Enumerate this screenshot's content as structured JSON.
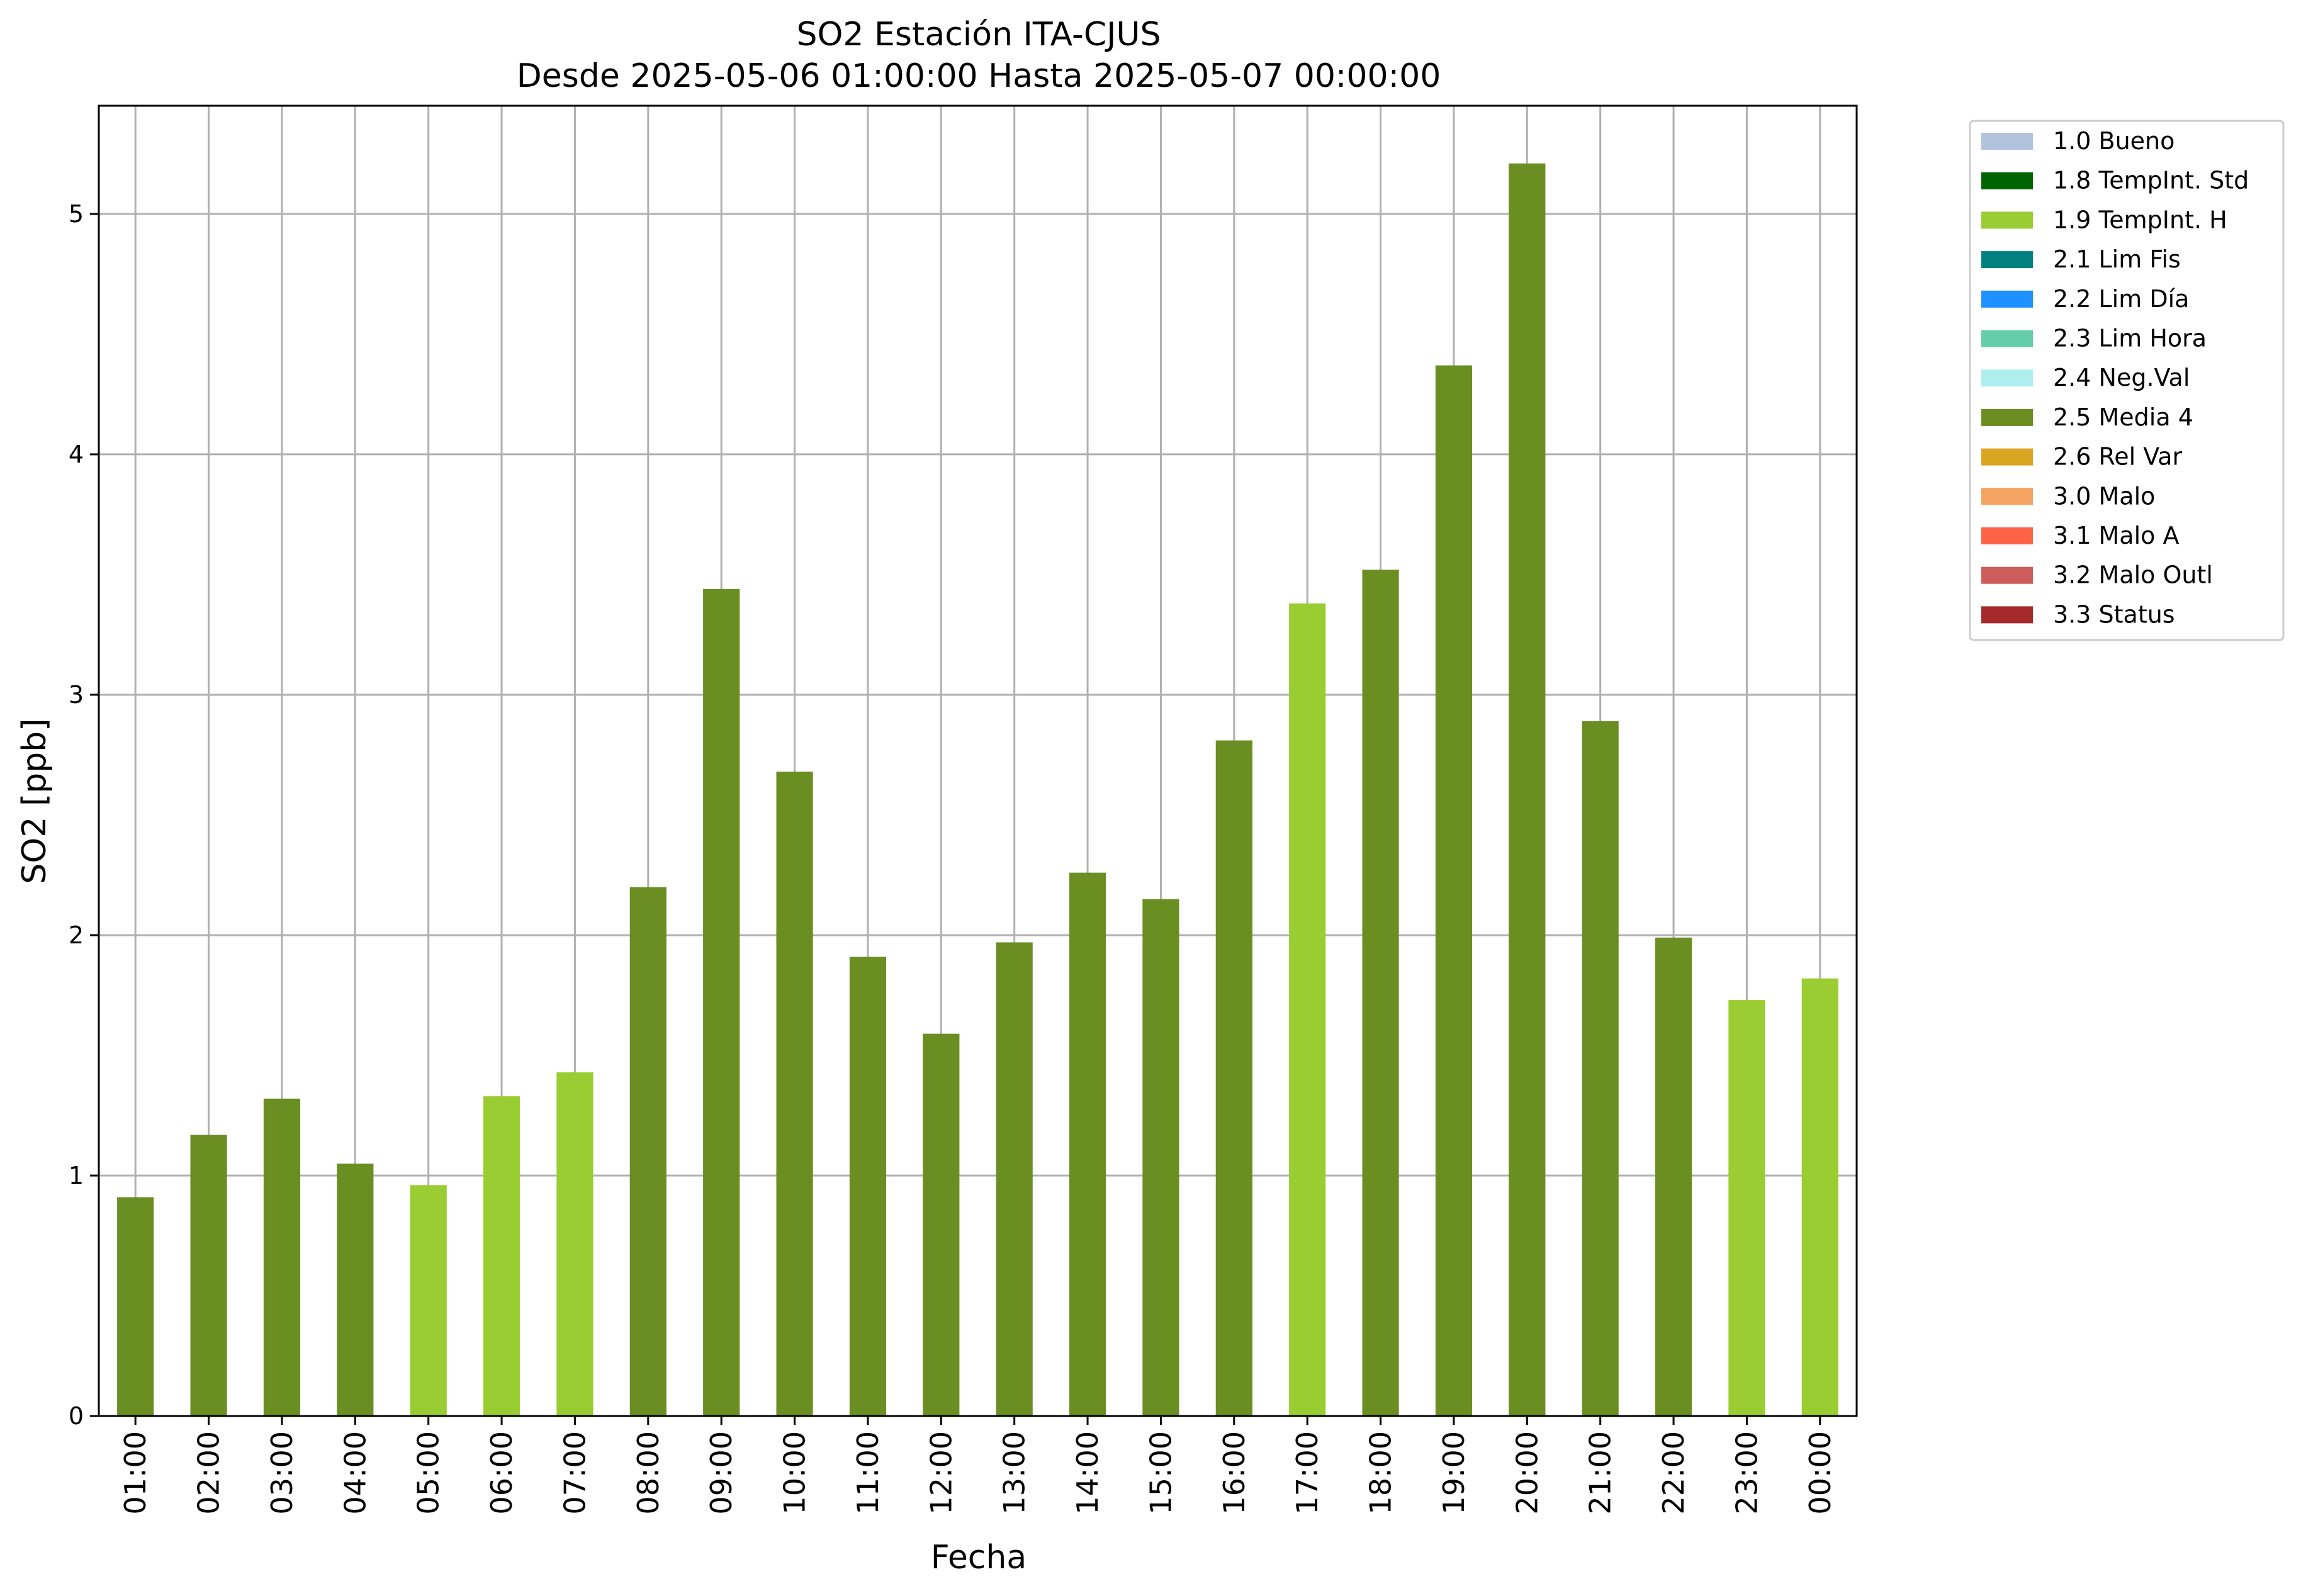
{
  "chart_data": {
    "type": "bar",
    "title": "SO2 Estación ITA-CJUS",
    "subtitle": "Desde 2025-05-06 01:00:00 Hasta 2025-05-07 00:00:00",
    "xlabel": "Fecha",
    "ylabel": "SO2 [ppb]",
    "ylim": [
      0,
      5.45
    ],
    "yticks": [
      "0",
      "1",
      "2",
      "3",
      "4",
      "5"
    ],
    "grid": true,
    "legend_position": "outside-right-top",
    "categories": [
      "01:00",
      "02:00",
      "03:00",
      "04:00",
      "05:00",
      "06:00",
      "07:00",
      "08:00",
      "09:00",
      "10:00",
      "11:00",
      "12:00",
      "13:00",
      "14:00",
      "15:00",
      "16:00",
      "17:00",
      "18:00",
      "19:00",
      "20:00",
      "21:00",
      "22:00",
      "23:00",
      "00:00"
    ],
    "values": [
      0.91,
      1.17,
      1.32,
      1.05,
      0.96,
      1.33,
      1.43,
      2.2,
      3.44,
      2.68,
      1.91,
      1.59,
      1.97,
      2.26,
      2.15,
      2.81,
      3.38,
      3.52,
      4.37,
      5.21,
      2.89,
      1.99,
      1.73,
      1.82
    ],
    "flags": [
      "2.5 Media 4",
      "2.5 Media 4",
      "2.5 Media 4",
      "2.5 Media 4",
      "1.9 TempInt. H",
      "1.9 TempInt. H",
      "1.9 TempInt. H",
      "2.5 Media 4",
      "2.5 Media 4",
      "2.5 Media 4",
      "2.5 Media 4",
      "2.5 Media 4",
      "2.5 Media 4",
      "2.5 Media 4",
      "2.5 Media 4",
      "2.5 Media 4",
      "1.9 TempInt. H",
      "2.5 Media 4",
      "2.5 Media 4",
      "2.5 Media 4",
      "2.5 Media 4",
      "2.5 Media 4",
      "1.9 TempInt. H",
      "1.9 TempInt. H"
    ],
    "legend": [
      {
        "label": "1.0 Bueno",
        "color": "#b0c4de"
      },
      {
        "label": "1.8 TempInt. Std",
        "color": "#006400"
      },
      {
        "label": "1.9 TempInt. H",
        "color": "#9acd32"
      },
      {
        "label": "2.1 Lim Fis",
        "color": "#008080"
      },
      {
        "label": "2.2 Lim Día",
        "color": "#1e90ff"
      },
      {
        "label": "2.3 Lim Hora",
        "color": "#66cdaa"
      },
      {
        "label": "2.4 Neg.Val",
        "color": "#afeeee"
      },
      {
        "label": "2.5 Media 4",
        "color": "#6b8e23"
      },
      {
        "label": "2.6 Rel Var",
        "color": "#daa520"
      },
      {
        "label": "3.0 Malo",
        "color": "#f4a460"
      },
      {
        "label": "3.1 Malo A",
        "color": "#ff6347"
      },
      {
        "label": "3.2 Malo Outl",
        "color": "#cd5c5c"
      },
      {
        "label": "3.3 Status",
        "color": "#a52a2a"
      }
    ]
  }
}
